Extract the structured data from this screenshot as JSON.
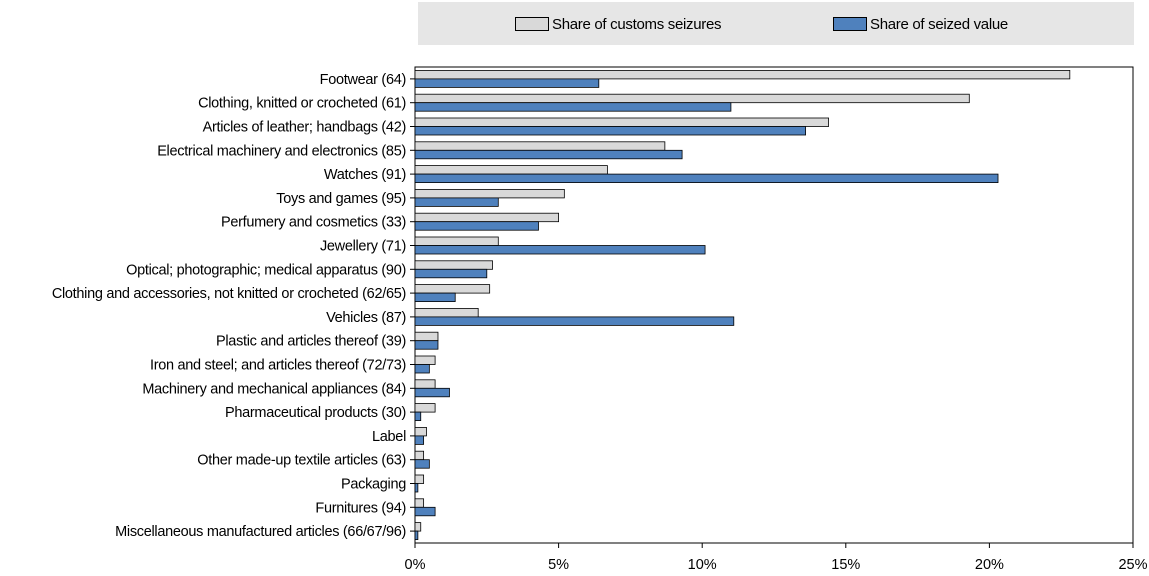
{
  "chart_data": {
    "type": "bar",
    "orientation": "horizontal",
    "categories": [
      "Footwear (64)",
      "Clothing, knitted or crocheted (61)",
      "Articles of leather; handbags (42)",
      "Electrical machinery and electronics (85)",
      "Watches (91)",
      "Toys and games (95)",
      "Perfumery and cosmetics (33)",
      "Jewellery (71)",
      "Optical; photographic; medical apparatus (90)",
      "Clothing and accessories, not knitted or crocheted (62/65)",
      "Vehicles (87)",
      "Plastic and articles thereof (39)",
      "Iron and steel; and articles thereof (72/73)",
      "Machinery and mechanical appliances (84)",
      "Pharmaceutical products (30)",
      "Label",
      "Other made-up textile articles (63)",
      "Packaging",
      "Furnitures (94)",
      "Miscellaneous manufactured articles (66/67/96)"
    ],
    "series": [
      {
        "name": "Share of customs seizures",
        "color": "#d9d9d9",
        "values": [
          22.8,
          19.3,
          14.4,
          8.7,
          6.7,
          5.2,
          5.0,
          2.9,
          2.7,
          2.6,
          2.2,
          0.8,
          0.7,
          0.7,
          0.7,
          0.4,
          0.3,
          0.3,
          0.3,
          0.2
        ]
      },
      {
        "name": "Share of seized value",
        "color": "#4f81bd",
        "values": [
          6.4,
          11.0,
          13.6,
          9.3,
          20.3,
          2.9,
          4.3,
          10.1,
          2.5,
          1.4,
          11.1,
          0.8,
          0.5,
          1.2,
          0.2,
          0.3,
          0.5,
          0.1,
          0.7,
          0.1
        ]
      }
    ],
    "xlim": [
      0,
      25
    ],
    "xticks": [
      0,
      5,
      10,
      15,
      20,
      25
    ],
    "xtick_labels": [
      "0%",
      "5%",
      "10%",
      "15%",
      "20%",
      "25%"
    ],
    "legend": {
      "placement": "top",
      "items": [
        "Share of customs seizures",
        "Share of seized value"
      ]
    },
    "grid": false
  }
}
